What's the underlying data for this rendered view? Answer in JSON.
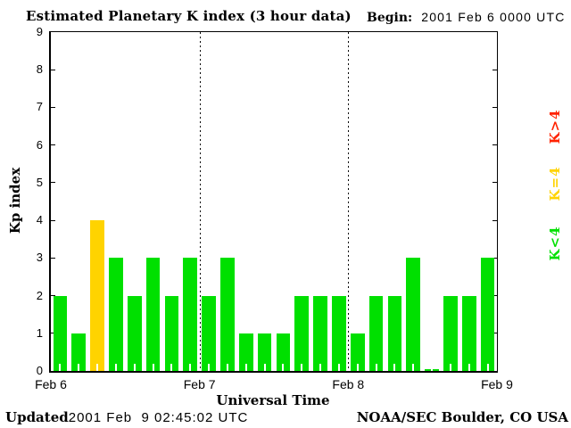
{
  "header": {
    "title": "Estimated Planetary K index (3 hour data)",
    "begin_label": "Begin:",
    "begin_value": "2001 Feb 6 0000 UTC"
  },
  "footer": {
    "updated_label": "Updated",
    "updated_value": "2001 Feb  9 02:45:02 UTC",
    "credit": "NOAA/SEC Boulder, CO USA"
  },
  "legend": [
    {
      "label": "K>4",
      "color": "#ff2200"
    },
    {
      "label": "K=4",
      "color": "#ffd300"
    },
    {
      "label": "K<4",
      "color": "#00e000"
    }
  ],
  "chart_data": {
    "type": "bar",
    "title": "Estimated Planetary K index (3 hour data)",
    "xlabel": "Universal Time",
    "ylabel": "Kp index",
    "ylim": [
      0,
      9
    ],
    "yticks": [
      0,
      1,
      2,
      3,
      4,
      5,
      6,
      7,
      8,
      9
    ],
    "bin_hours": 3,
    "day_labels": [
      "Feb 6",
      "Feb 7",
      "Feb 8",
      "Feb 9"
    ],
    "series": [
      {
        "date": "Feb 6",
        "values": [
          2,
          1,
          4,
          3,
          2,
          3,
          2,
          3
        ]
      },
      {
        "date": "Feb 7",
        "values": [
          2,
          3,
          1,
          1,
          1,
          2,
          2,
          2
        ]
      },
      {
        "date": "Feb 8",
        "values": [
          1,
          2,
          2,
          3,
          0,
          2,
          2,
          3
        ]
      }
    ],
    "color_rules": {
      "k_lt_4": "#00e000",
      "k_eq_4": "#ffd300",
      "k_gt_4": "#ff2200"
    },
    "grid": "dotted vertical lines at day boundaries",
    "legend_position": "right, rotated"
  }
}
